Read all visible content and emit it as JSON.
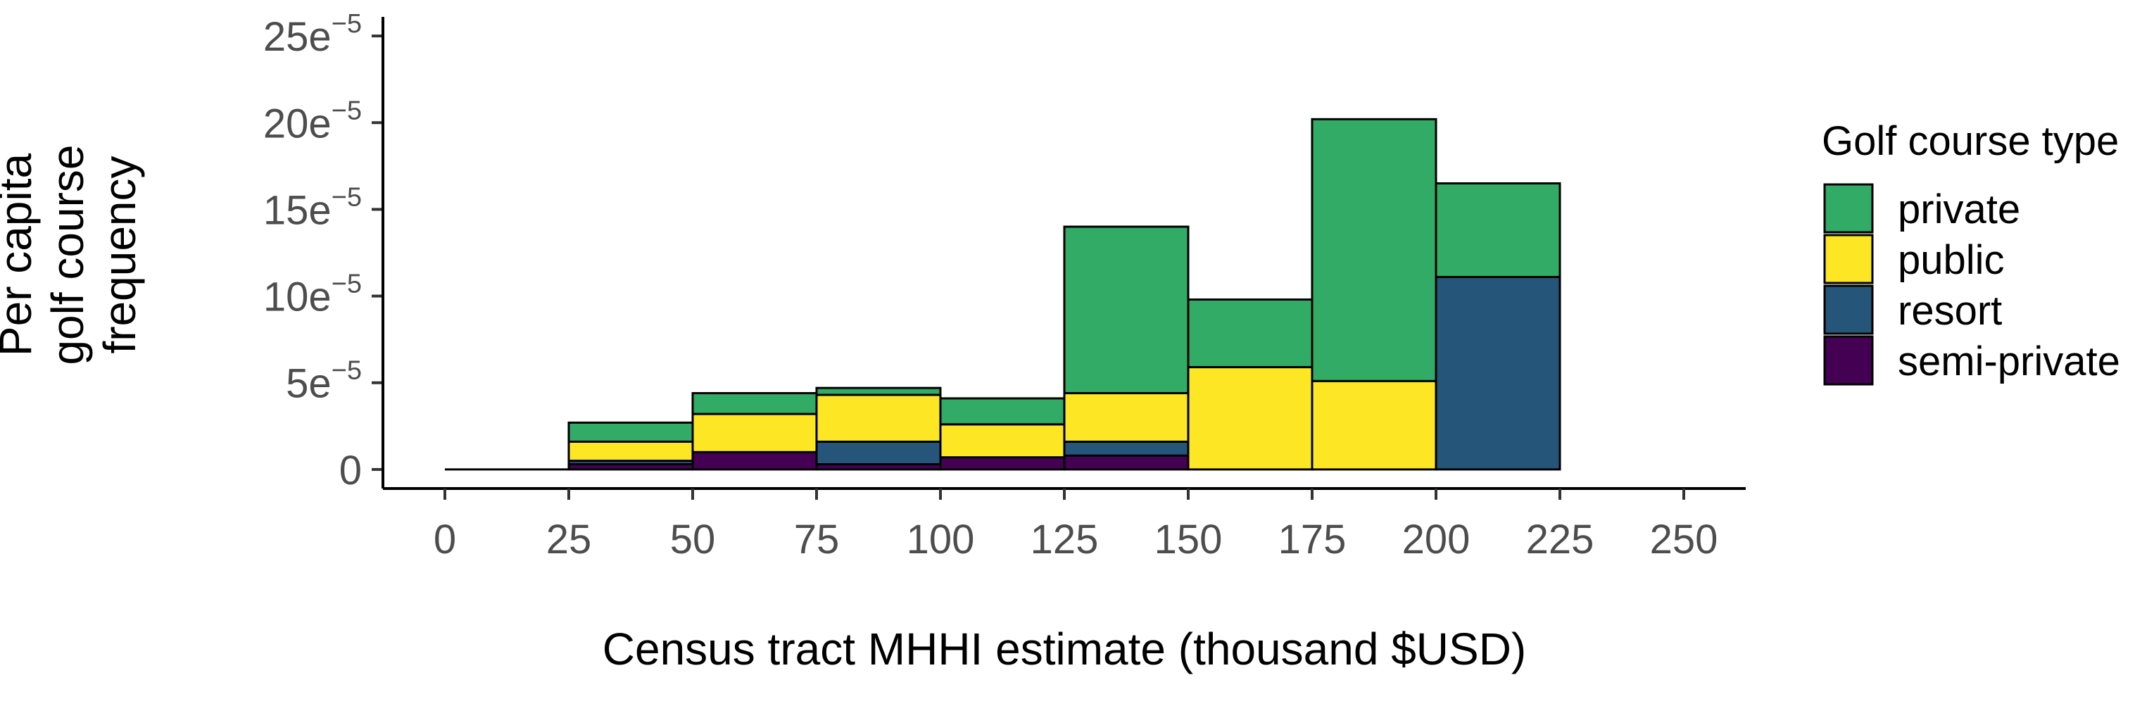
{
  "chart_data": {
    "type": "bar",
    "stacked": true,
    "title": "",
    "xlabel": "Census tract MHHI estimate (thousand $USD)",
    "ylabel": [
      "Per capita",
      "golf course",
      "frequency"
    ],
    "x_ticks": [
      "0",
      "25",
      "50",
      "75",
      "100",
      "125",
      "150",
      "175",
      "200",
      "225",
      "250"
    ],
    "x_tick_values": [
      0,
      25,
      50,
      75,
      100,
      125,
      150,
      175,
      200,
      225,
      250
    ],
    "xlim": [
      -12.5,
      262.5
    ],
    "y_ticks": [
      {
        "base": "0",
        "exp": ""
      },
      {
        "base": "5e",
        "exp": "−5"
      },
      {
        "base": "10e",
        "exp": "−5"
      },
      {
        "base": "15e",
        "exp": "−5"
      },
      {
        "base": "20e",
        "exp": "−5"
      },
      {
        "base": "25e",
        "exp": "−5"
      }
    ],
    "y_tick_values": [
      0,
      5,
      10,
      15,
      20,
      25
    ],
    "y_unit": "1e-5",
    "ylim": [
      -1.1,
      26.1
    ],
    "bins": [
      {
        "x0": 0,
        "x1": 25
      },
      {
        "x0": 25,
        "x1": 50
      },
      {
        "x0": 50,
        "x1": 75
      },
      {
        "x0": 75,
        "x1": 100
      },
      {
        "x0": 100,
        "x1": 125
      },
      {
        "x0": 125,
        "x1": 150
      },
      {
        "x0": 150,
        "x1": 175
      },
      {
        "x0": 175,
        "x1": 200
      },
      {
        "x0": 200,
        "x1": 225
      }
    ],
    "series": [
      {
        "name": "semi-private",
        "color": "#440154",
        "values": [
          0,
          0.3,
          1.0,
          0.3,
          0.7,
          0.8,
          0,
          0,
          0
        ]
      },
      {
        "name": "resort",
        "color": "#26557A",
        "values": [
          0,
          0.2,
          0,
          1.3,
          0,
          0.8,
          0,
          0,
          11.1
        ]
      },
      {
        "name": "public",
        "color": "#FDE725",
        "values": [
          0,
          1.1,
          2.2,
          2.7,
          1.9,
          2.8,
          5.9,
          5.1,
          0
        ]
      },
      {
        "name": "private",
        "color": "#31AB66",
        "values": [
          0,
          1.1,
          1.2,
          0.4,
          1.5,
          9.6,
          3.9,
          15.1,
          5.4
        ]
      }
    ],
    "legend": {
      "title": "Golf course type",
      "position": "right",
      "entries": [
        {
          "name": "private",
          "color": "#31AB66"
        },
        {
          "name": "public",
          "color": "#FDE725"
        },
        {
          "name": "resort",
          "color": "#26557A"
        },
        {
          "name": "semi-private",
          "color": "#440154"
        }
      ]
    },
    "grid": false
  }
}
